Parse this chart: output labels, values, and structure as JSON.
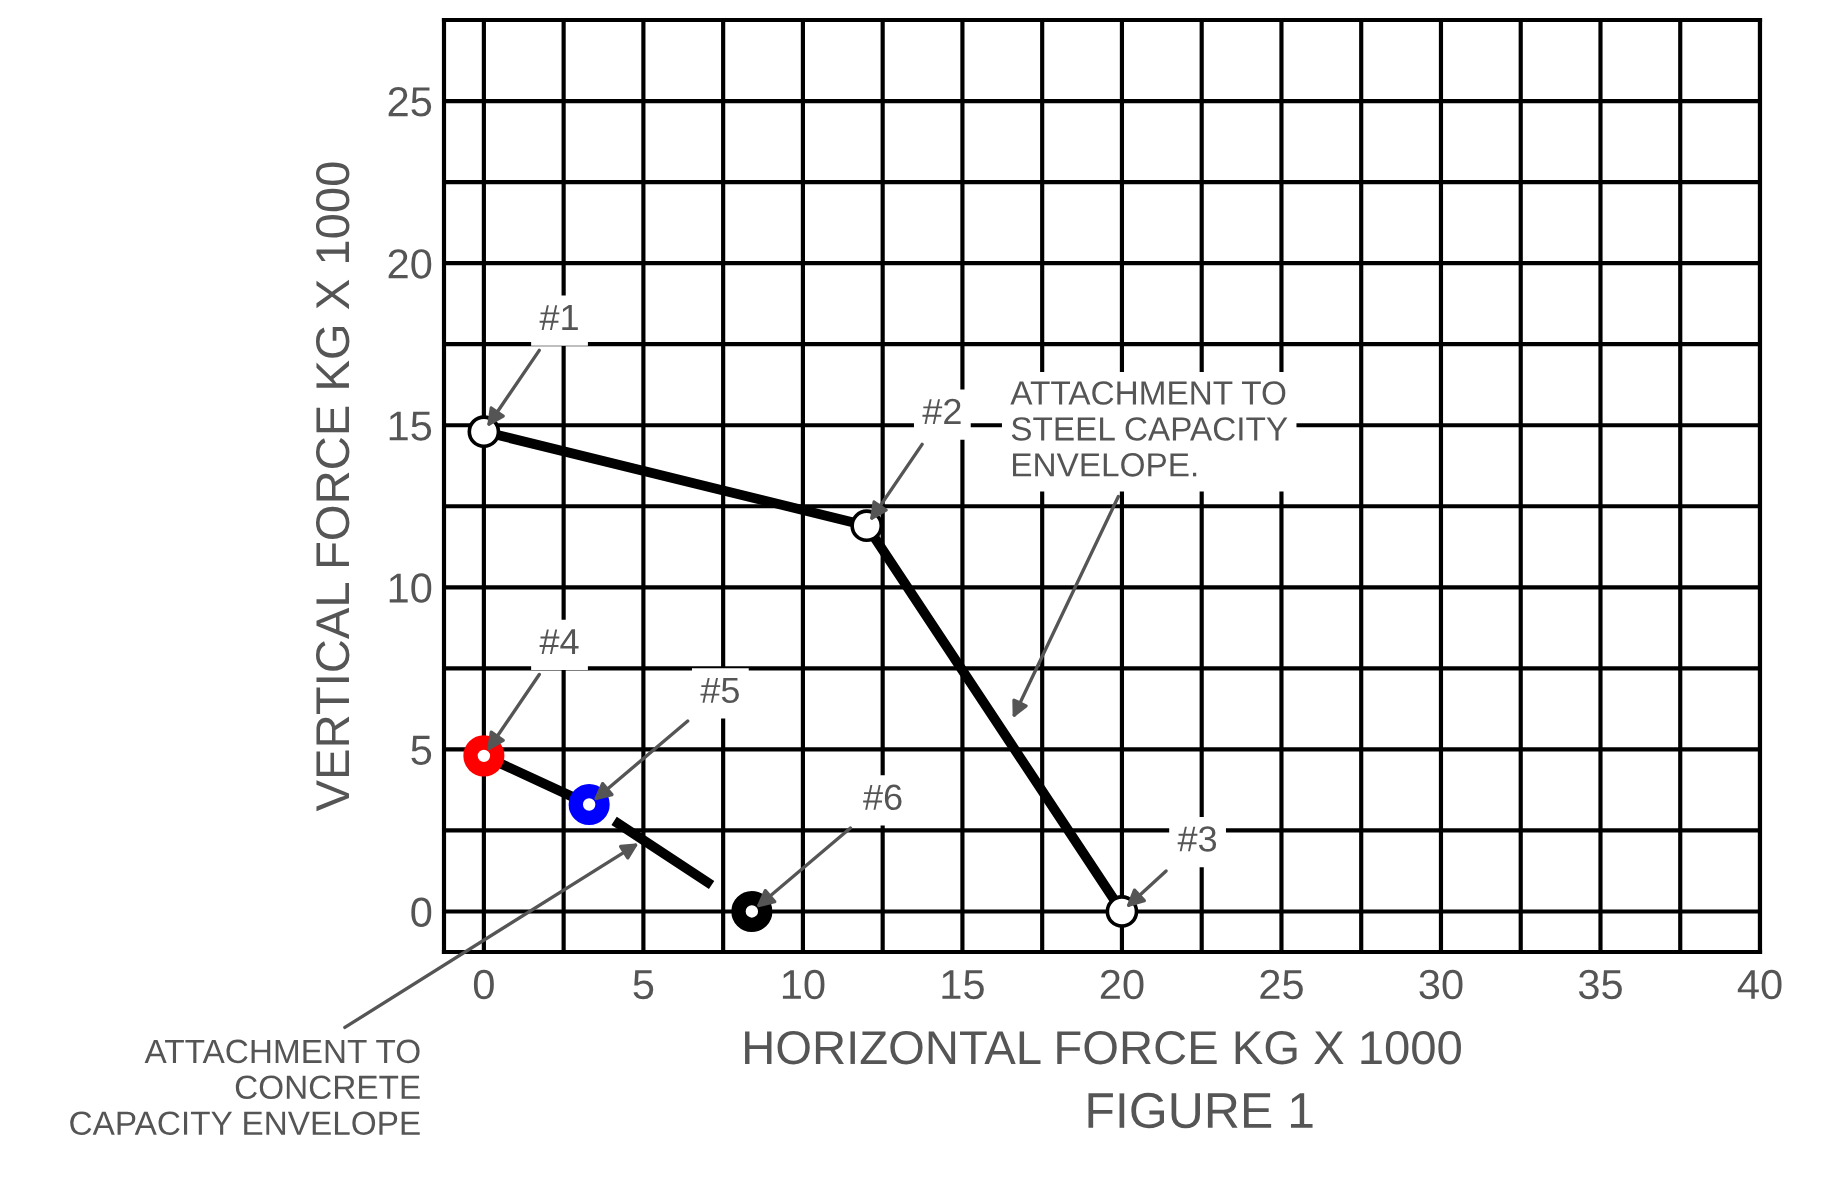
{
  "chart_data": {
    "type": "line",
    "title": "FIGURE 1",
    "xlabel": "HORIZONTAL FORCE KG X 1000",
    "ylabel": "VERTICAL FORCE KG X 1000",
    "xlim": [
      -1.25,
      40
    ],
    "ylim": [
      -1.25,
      27.5
    ],
    "xticks": [
      0,
      5,
      10,
      15,
      20,
      25,
      30,
      35,
      40
    ],
    "yticks": [
      0,
      5,
      10,
      15,
      20,
      25
    ],
    "grid": true,
    "legend": false,
    "series": [
      {
        "color": "#000000",
        "x": [
          0,
          12,
          20
        ],
        "values": [
          14.8,
          11.9,
          0
        ],
        "marker": "circle",
        "line_style": "solid"
      },
      {
        "color": "#000000",
        "colors": [
          "#ff0000",
          "#0000ff",
          "#000000"
        ],
        "x": [
          0,
          3.3,
          8.4
        ],
        "values": [
          4.8,
          3.3,
          0
        ],
        "marker": "circle",
        "line_style": "dashed"
      }
    ],
    "annotations": [
      {
        "text": "#1",
        "x": 0,
        "y": 14.8
      },
      {
        "text": "#2",
        "x": 12,
        "y": 11.9
      },
      {
        "text": "#3",
        "x": 20,
        "y": 0
      },
      {
        "text": "#4",
        "x": 0,
        "y": 4.8
      },
      {
        "text": "#5",
        "x": 3.3,
        "y": 3.3
      },
      {
        "text": "#6",
        "x": 8.4,
        "y": 0
      },
      {
        "text": "ATTACHMENT TO\nSTEEL CAPACITY\nENVELOPE.",
        "x": 16.5,
        "y": 5.8
      },
      {
        "text": "ATTACHMENT TO\nCONCRETE\nCAPACITY ENVELOPE",
        "x": 5,
        "y": 2.2
      }
    ]
  }
}
